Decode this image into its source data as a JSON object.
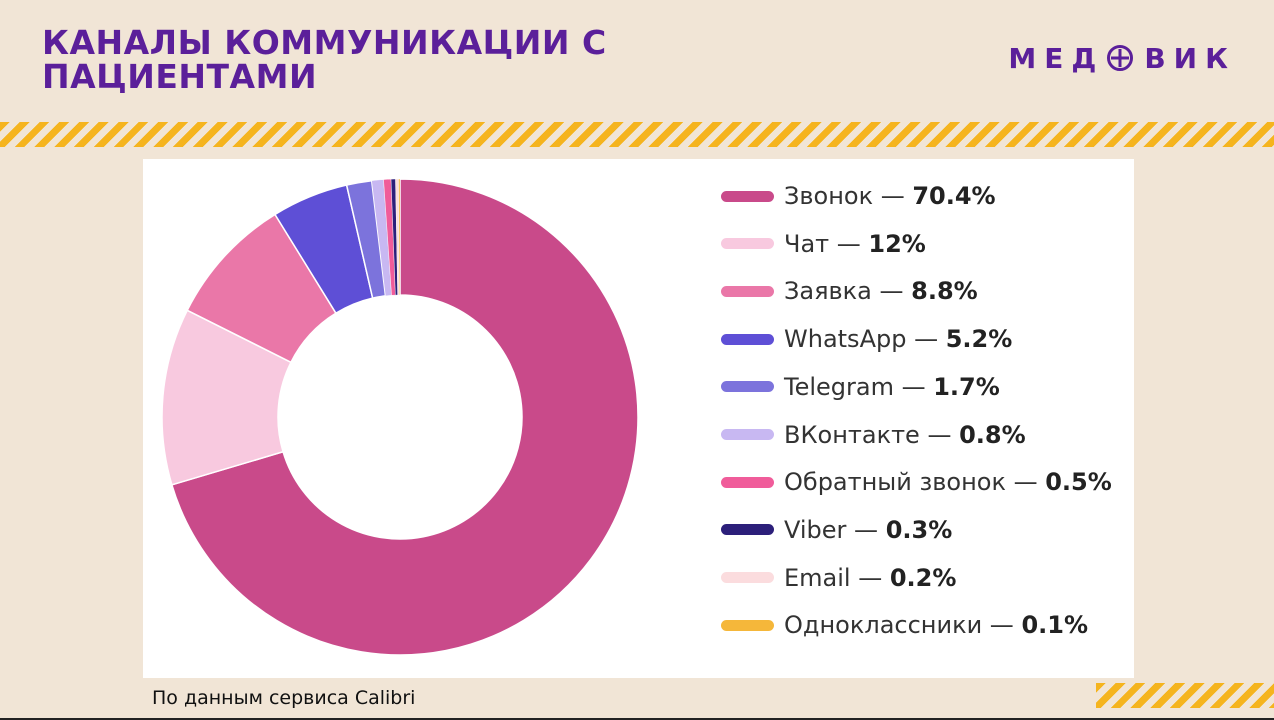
{
  "header": {
    "title_line1": "КАНАЛЫ КОММУНИКАЦИИ С",
    "title_line2": "ПАЦИЕНТАМИ",
    "logo_left": "МЕД",
    "logo_right": "ВИК"
  },
  "footer": {
    "source": "По данным сервиса Calibri"
  },
  "chart_data": {
    "type": "pie",
    "donut": true,
    "legend_position": "right",
    "separator": " — ",
    "series": [
      {
        "name": "Звонок",
        "value": 70.4,
        "label": "70.4%",
        "color": "#c94a8a"
      },
      {
        "name": "Чат",
        "value": 12,
        "label": "12%",
        "color": "#f8c9df"
      },
      {
        "name": "Заявка",
        "value": 8.8,
        "label": "8.8%",
        "color": "#ea77a8"
      },
      {
        "name": "WhatsApp",
        "value": 5.2,
        "label": "5.2%",
        "color": "#5e4fd6"
      },
      {
        "name": "Telegram",
        "value": 1.7,
        "label": "1.7%",
        "color": "#7c73dc"
      },
      {
        "name": "ВКонтакте",
        "value": 0.8,
        "label": "0.8%",
        "color": "#c8b8f2"
      },
      {
        "name": "Обратный звонок",
        "value": 0.5,
        "label": "0.5%",
        "color": "#f05c9a"
      },
      {
        "name": "Viber",
        "value": 0.3,
        "label": "0.3%",
        "color": "#2c1f7a"
      },
      {
        "name": "Email",
        "value": 0.2,
        "label": "0.2%",
        "color": "#fbdcde"
      },
      {
        "name": "Одноклассники",
        "value": 0.1,
        "label": "0.1%",
        "color": "#f5b73a"
      }
    ]
  }
}
